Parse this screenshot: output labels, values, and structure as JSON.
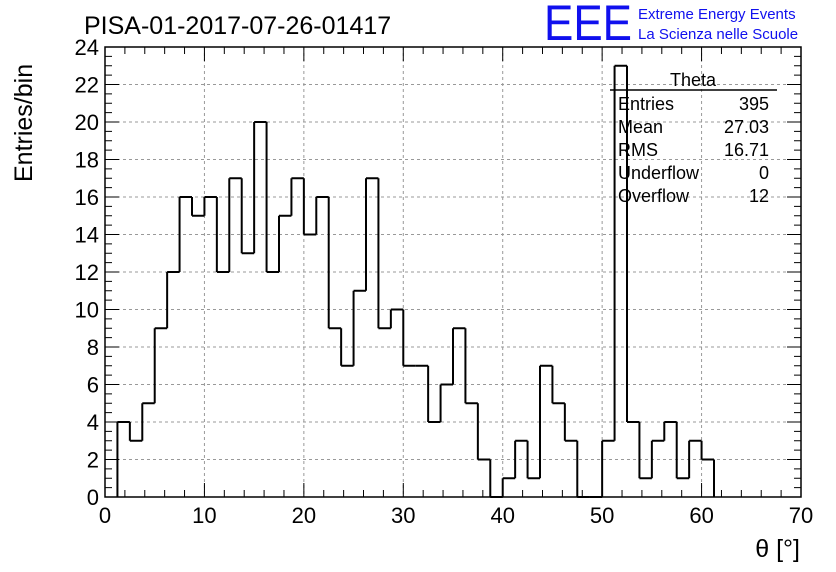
{
  "chart_data": {
    "type": "bar",
    "title": "PISA-01-2017-07-26-01417",
    "xlabel": "θ [°]",
    "ylabel": "Entries/bin",
    "xlim": [
      0,
      70
    ],
    "ylim": [
      0,
      24
    ],
    "x_ticks": [
      "0",
      "10",
      "20",
      "30",
      "40",
      "50",
      "60",
      "70"
    ],
    "y_ticks": [
      "0",
      "2",
      "4",
      "6",
      "8",
      "10",
      "12",
      "14",
      "16",
      "18",
      "20",
      "22",
      "24"
    ],
    "grid": true,
    "bin_width": 1.25,
    "bin_start": 1.25,
    "values": [
      4,
      3,
      5,
      9,
      12,
      16,
      15,
      16,
      12,
      17,
      13,
      20,
      12,
      15,
      17,
      14,
      16,
      9,
      7,
      11,
      17,
      9,
      10,
      7,
      7,
      4,
      6,
      9,
      5,
      2,
      0,
      1,
      3,
      1,
      7,
      5,
      3,
      0,
      0,
      3,
      23,
      4,
      1,
      3,
      4,
      1,
      3,
      2
    ],
    "stats": {
      "name": "Theta",
      "rows": [
        {
          "label": "Entries",
          "value": "395"
        },
        {
          "label": "Mean",
          "value": "27.03"
        },
        {
          "label": "RMS",
          "value": "16.71"
        },
        {
          "label": "Underflow",
          "value": "0"
        },
        {
          "label": "Overflow",
          "value": "12"
        }
      ]
    }
  },
  "logo": {
    "mark": "EEE",
    "line1": "Extreme Energy Events",
    "line2": "La Scienza nelle Scuole",
    "color": "#1010ee"
  }
}
